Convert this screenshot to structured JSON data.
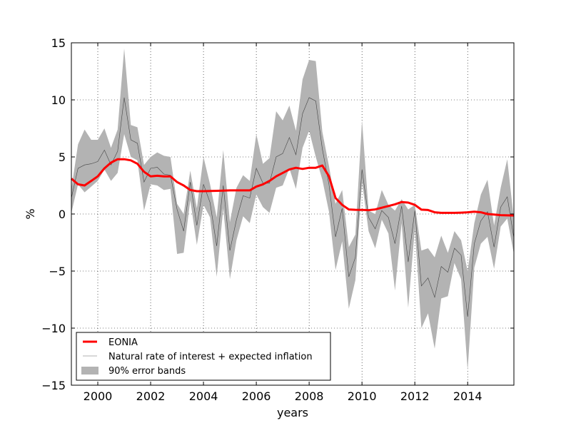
{
  "chart_data": {
    "type": "line",
    "title": "",
    "xlabel": "years",
    "ylabel": "%",
    "xlim": [
      1999.0,
      2015.75
    ],
    "ylim": [
      -15,
      15
    ],
    "x_ticks": [
      2000,
      2002,
      2004,
      2006,
      2008,
      2010,
      2012,
      2014
    ],
    "x_tick_labels": [
      "2000",
      "2002",
      "2004",
      "2006",
      "2008",
      "2010",
      "2012",
      "2014"
    ],
    "y_ticks": [
      15,
      10,
      5,
      0,
      -5,
      -10,
      -15
    ],
    "y_tick_labels": [
      "15",
      "10",
      "5",
      "0",
      "−5",
      "−10",
      "−15"
    ],
    "grid": true,
    "legend_position": "lower-left",
    "colors": {
      "eonia": "#ff0000",
      "natural": "#444444",
      "natural_legend": "#cccccc",
      "band": "#b3b3b3"
    },
    "x": [
      1999.0,
      1999.25,
      1999.5,
      1999.75,
      2000.0,
      2000.25,
      2000.5,
      2000.75,
      2001.0,
      2001.25,
      2001.5,
      2001.75,
      2002.0,
      2002.25,
      2002.5,
      2002.75,
      2003.0,
      2003.25,
      2003.5,
      2003.75,
      2004.0,
      2004.25,
      2004.5,
      2004.75,
      2005.0,
      2005.25,
      2005.5,
      2005.75,
      2006.0,
      2006.25,
      2006.5,
      2006.75,
      2007.0,
      2007.25,
      2007.5,
      2007.75,
      2008.0,
      2008.25,
      2008.5,
      2008.75,
      2009.0,
      2009.25,
      2009.5,
      2009.75,
      2010.0,
      2010.25,
      2010.5,
      2010.75,
      2011.0,
      2011.25,
      2011.5,
      2011.75,
      2012.0,
      2012.25,
      2012.5,
      2012.75,
      2013.0,
      2013.25,
      2013.5,
      2013.75,
      2014.0,
      2014.25,
      2014.5,
      2014.75,
      2015.0,
      2015.25,
      2015.5,
      2015.75
    ],
    "series": [
      {
        "name": "EONIA",
        "values": [
          3.1,
          2.6,
          2.5,
          2.9,
          3.3,
          4.0,
          4.5,
          4.8,
          4.8,
          4.7,
          4.4,
          3.7,
          3.3,
          3.35,
          3.3,
          3.3,
          2.8,
          2.5,
          2.1,
          2.0,
          2.0,
          2.02,
          2.03,
          2.05,
          2.07,
          2.07,
          2.07,
          2.07,
          2.4,
          2.6,
          2.9,
          3.3,
          3.6,
          3.9,
          4.05,
          3.95,
          4.05,
          4.05,
          4.25,
          3.3,
          1.4,
          0.8,
          0.4,
          0.37,
          0.36,
          0.34,
          0.4,
          0.55,
          0.7,
          0.85,
          1.05,
          1.0,
          0.8,
          0.38,
          0.35,
          0.15,
          0.1,
          0.1,
          0.1,
          0.12,
          0.15,
          0.2,
          0.15,
          0.0,
          -0.05,
          -0.1,
          -0.12,
          -0.13
        ]
      },
      {
        "name": "Natural rate of interest + expected inflation",
        "values": [
          1.4,
          4.0,
          4.3,
          4.4,
          4.6,
          5.6,
          4.3,
          5.5,
          10.2,
          6.5,
          6.2,
          2.8,
          4.0,
          4.1,
          3.5,
          3.4,
          0.4,
          -1.5,
          2.8,
          -1.0,
          2.6,
          1.0,
          -2.8,
          2.5,
          -3.2,
          -0.5,
          1.6,
          1.4,
          4.0,
          2.7,
          2.7,
          5.0,
          5.3,
          6.7,
          5.2,
          8.8,
          10.2,
          9.9,
          5.7,
          2.6,
          -2.0,
          0.5,
          -5.5,
          -3.8,
          3.9,
          -0.3,
          -1.3,
          0.3,
          -0.3,
          -2.6,
          0.7,
          -4.2,
          0.3,
          -6.3,
          -5.6,
          -7.3,
          -4.6,
          -5.1,
          -3.0,
          -3.6,
          -9.0,
          -2.6,
          -0.6,
          0.2,
          -2.9,
          0.6,
          1.5,
          -2.1
        ]
      }
    ],
    "bands": [
      {
        "name": "90% error bands",
        "lower": [
          0.1,
          2.6,
          1.9,
          2.4,
          2.9,
          3.9,
          2.9,
          3.6,
          7.0,
          5.0,
          4.7,
          0.3,
          2.6,
          2.5,
          2.1,
          2.2,
          -3.5,
          -3.4,
          1.2,
          -2.7,
          0.8,
          -0.3,
          -5.5,
          0.5,
          -5.7,
          -2.3,
          -0.2,
          -0.8,
          1.7,
          0.6,
          0.1,
          2.3,
          2.5,
          4.0,
          2.2,
          5.8,
          7.3,
          5.0,
          3.0,
          0.2,
          -4.9,
          -2.4,
          -8.3,
          -5.8,
          2.8,
          -1.5,
          -3.0,
          -0.5,
          -1.7,
          -6.7,
          -0.8,
          -8.2,
          -1.3,
          -10.0,
          -8.7,
          -11.8,
          -7.4,
          -7.2,
          -4.3,
          -5.7,
          -13.7,
          -4.7,
          -2.6,
          -2.0,
          -4.8,
          -1.1,
          -0.4,
          -3.5
        ],
        "upper": [
          2.2,
          6.1,
          7.4,
          6.5,
          6.5,
          7.5,
          5.8,
          7.4,
          14.5,
          7.8,
          7.6,
          4.3,
          5.0,
          5.4,
          5.1,
          5.0,
          0.9,
          0.0,
          3.8,
          0.5,
          5.0,
          2.6,
          -0.3,
          5.6,
          -0.7,
          2.3,
          3.4,
          2.9,
          7.0,
          4.4,
          4.9,
          9.0,
          8.2,
          9.5,
          7.3,
          11.8,
          13.5,
          13.4,
          7.2,
          4.2,
          0.9,
          2.1,
          -2.9,
          -1.8,
          8.2,
          0.3,
          0.0,
          2.1,
          0.8,
          0.3,
          1.3,
          0.4,
          0.8,
          -3.2,
          -3.0,
          -3.8,
          -1.9,
          -3.4,
          -1.5,
          -2.3,
          -5.0,
          -0.8,
          1.7,
          3.0,
          -1.0,
          2.3,
          4.8,
          -0.5
        ]
      }
    ],
    "legend": [
      {
        "label": "EONIA"
      },
      {
        "label": "Natural rate of interest + expected inflation"
      },
      {
        "label": "90% error bands"
      }
    ]
  }
}
